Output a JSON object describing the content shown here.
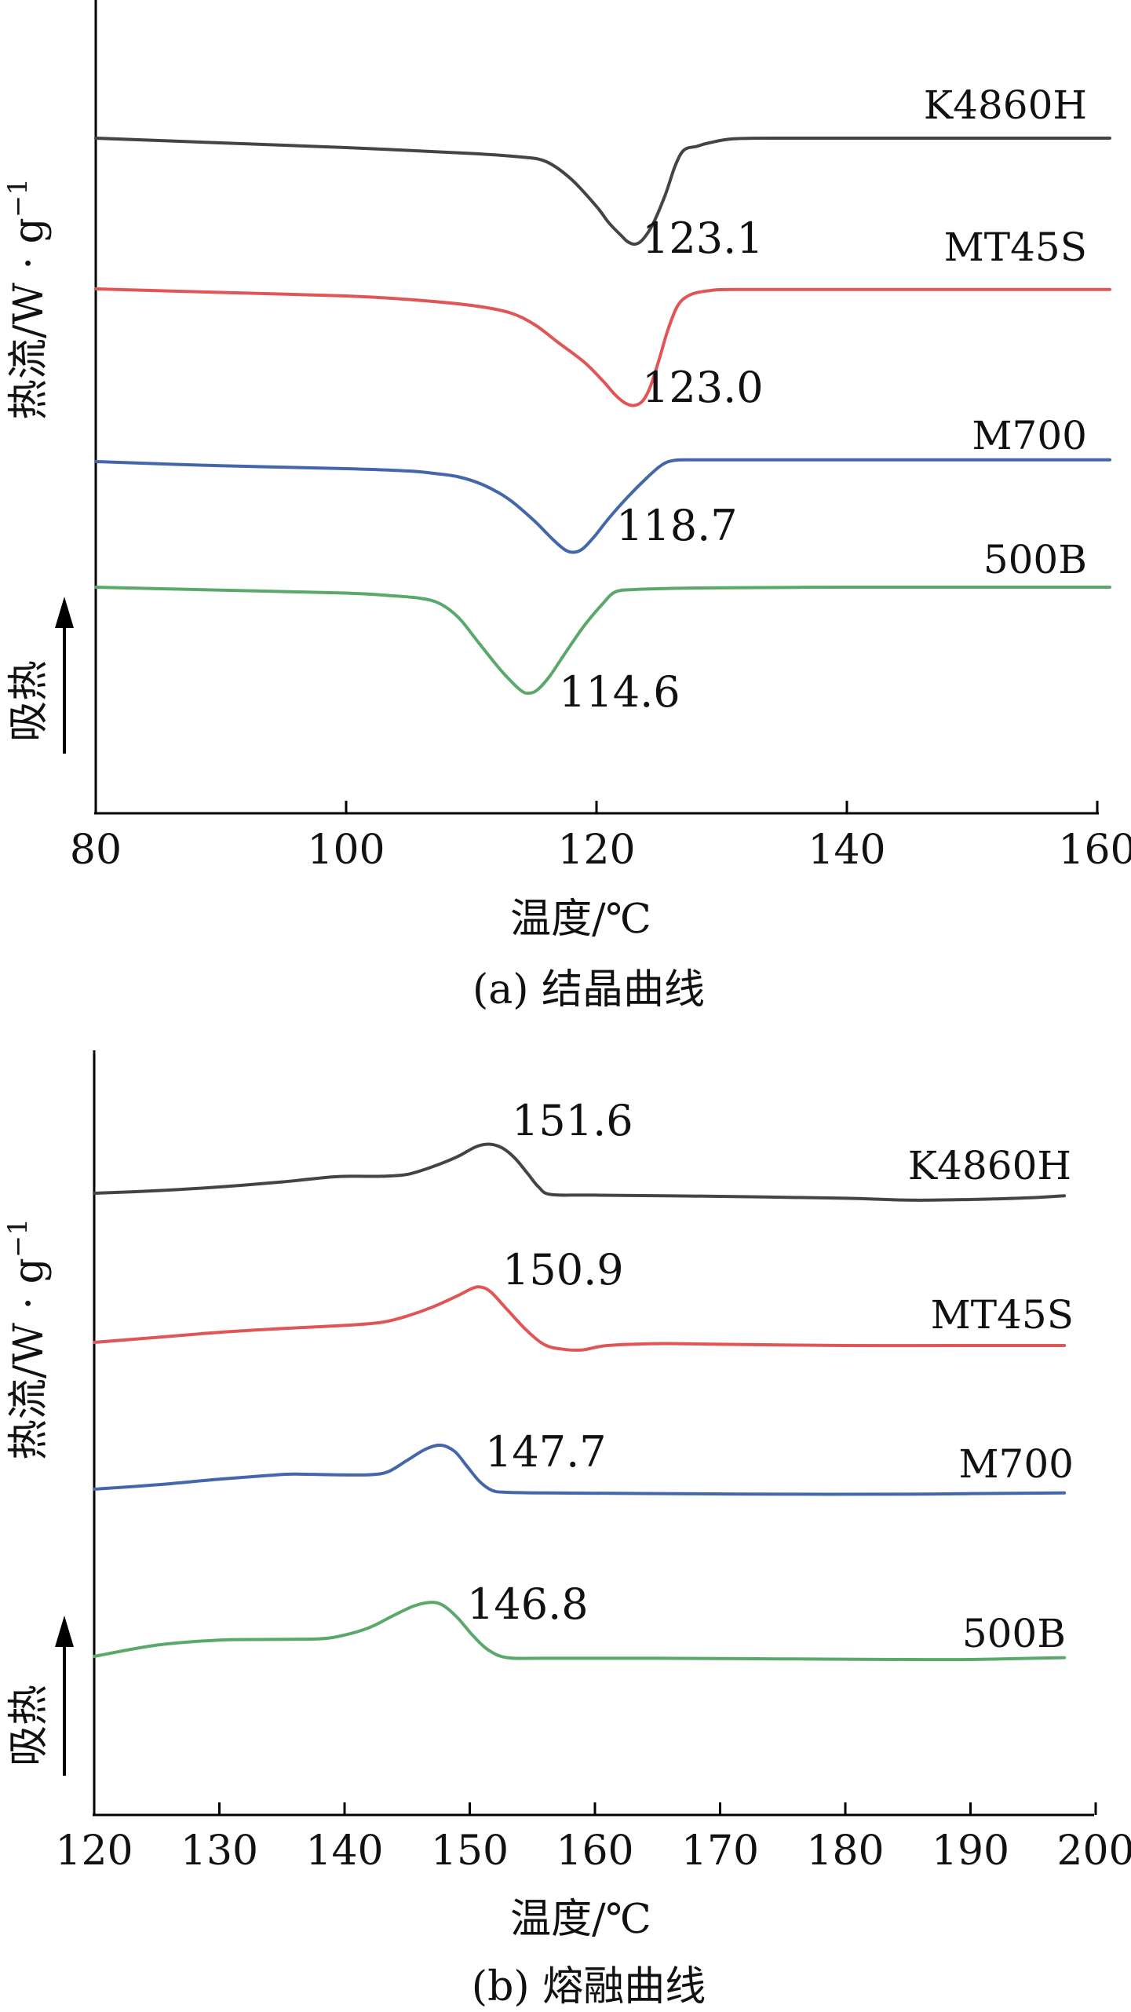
{
  "colors": {
    "K4860H": "#444444",
    "MT45S": "#e05555",
    "M700": "#4466aa",
    "500B": "#5aa86a"
  },
  "chart_data": [
    {
      "type": "line",
      "caption": "(a) 结晶曲线",
      "xlabel": "温度/℃",
      "ylabel": "热流/W·g⁻¹",
      "ylabel_parts": {
        "main": "热流/W · g",
        "sup": "−1"
      },
      "direction_label": "吸热",
      "xlim": [
        80,
        161
      ],
      "xticks": [
        80,
        100,
        120,
        140,
        160
      ],
      "yunits": "arbitrary (stacked, offset)",
      "series": [
        {
          "name": "K4860H",
          "color": "#444444",
          "peak_label": "123.1",
          "x": [
            80,
            90,
            100,
            110,
            114,
            116,
            118,
            120,
            121,
            122,
            122.5,
            123.1,
            123.7,
            124.5,
            125.5,
            126.3,
            127,
            128,
            129,
            131,
            135,
            140,
            150,
            161
          ],
          "y": [
            0,
            -0.4,
            -0.8,
            -1.3,
            -1.6,
            -2.0,
            -3.5,
            -5.8,
            -7.2,
            -8.3,
            -8.8,
            -9.0,
            -8.6,
            -7.3,
            -4.8,
            -2.3,
            -1.0,
            -0.7,
            -0.4,
            -0.05,
            0,
            0,
            0,
            0
          ]
        },
        {
          "name": "MT45S",
          "color": "#e05555",
          "peak_label": "123.0",
          "x": [
            80,
            90,
            100,
            105,
            110,
            113,
            115,
            117,
            119,
            120.5,
            121.5,
            122.3,
            123,
            123.7,
            124.3,
            125,
            125.7,
            126.5,
            127.5,
            129,
            131,
            140,
            150,
            161
          ],
          "y": [
            0,
            -0.3,
            -0.6,
            -0.9,
            -1.4,
            -2.0,
            -3.0,
            -4.6,
            -6.2,
            -7.8,
            -9.0,
            -9.7,
            -9.9,
            -9.5,
            -8.3,
            -6.0,
            -3.5,
            -1.4,
            -0.5,
            -0.15,
            -0.05,
            -0.05,
            -0.05,
            -0.05
          ]
        },
        {
          "name": "M700",
          "color": "#4466aa",
          "peak_label": "118.7",
          "x": [
            80,
            90,
            100,
            105,
            107,
            109,
            111,
            113,
            115,
            116.5,
            117.5,
            118.2,
            118.9,
            119.8,
            121,
            122.5,
            124,
            125.2,
            126.2,
            128,
            132,
            140,
            150,
            161
          ],
          "y": [
            0,
            -0.35,
            -0.6,
            -0.8,
            -1.0,
            -1.3,
            -2.0,
            -3.2,
            -5.0,
            -6.6,
            -7.5,
            -7.7,
            -7.4,
            -6.4,
            -4.8,
            -3.0,
            -1.4,
            -0.3,
            0.1,
            0.15,
            0.15,
            0.15,
            0.15,
            0.15
          ]
        },
        {
          "name": "500B",
          "color": "#5aa86a",
          "peak_label": "114.6",
          "x": [
            80,
            90,
            100,
            104,
            106,
            107.5,
            109,
            110.5,
            112,
            113,
            114,
            114.6,
            115.3,
            116.3,
            117.5,
            119,
            120.5,
            121.5,
            123,
            126,
            130,
            140,
            150,
            161
          ],
          "y": [
            0,
            -0.25,
            -0.5,
            -0.75,
            -0.95,
            -1.4,
            -2.6,
            -4.6,
            -6.6,
            -7.8,
            -8.8,
            -9.0,
            -8.7,
            -7.5,
            -5.6,
            -3.3,
            -1.4,
            -0.4,
            -0.2,
            -0.1,
            -0.05,
            0,
            0,
            0
          ]
        }
      ]
    },
    {
      "type": "line",
      "caption": "(b) 熔融曲线",
      "xlabel": "温度/℃",
      "ylabel": "热流/W·g⁻¹",
      "ylabel_parts": {
        "main": "热流/W · g",
        "sup": "−1"
      },
      "direction_label": "吸热",
      "xlim": [
        120,
        200
      ],
      "xticks": [
        120,
        130,
        140,
        150,
        160,
        170,
        180,
        190,
        200
      ],
      "yunits": "arbitrary (stacked, offset)",
      "series": [
        {
          "name": "K4860H",
          "color": "#444444",
          "peak_label": "151.6",
          "x": [
            120,
            125,
            130,
            135,
            139,
            141,
            143,
            145,
            147,
            149,
            150.5,
            151.6,
            152.6,
            153.6,
            154.6,
            155.5,
            156.5,
            160,
            170,
            180,
            185,
            190,
            195,
            197.5
          ],
          "y": [
            0,
            0.2,
            0.5,
            0.9,
            1.3,
            1.35,
            1.35,
            1.5,
            2.1,
            2.9,
            3.7,
            3.9,
            3.6,
            2.8,
            1.6,
            0.5,
            -0.1,
            -0.15,
            -0.25,
            -0.4,
            -0.55,
            -0.5,
            -0.35,
            -0.2
          ]
        },
        {
          "name": "MT45S",
          "color": "#e05555",
          "peak_label": "150.9",
          "x": [
            120,
            125,
            130,
            135,
            140,
            143,
            145,
            147,
            149,
            150.2,
            150.9,
            151.7,
            153,
            154.5,
            156,
            157.5,
            159,
            161,
            165,
            170,
            180,
            190,
            197.5
          ],
          "y": [
            0,
            0.4,
            0.8,
            1.1,
            1.35,
            1.6,
            2.1,
            2.8,
            3.7,
            4.3,
            4.4,
            4.0,
            2.6,
            1.0,
            -0.2,
            -0.55,
            -0.6,
            -0.25,
            -0.1,
            -0.15,
            -0.25,
            -0.25,
            -0.25
          ]
        },
        {
          "name": "M700",
          "color": "#4466aa",
          "peak_label": "147.7",
          "x": [
            120,
            125,
            130,
            134,
            136,
            139,
            142,
            143.5,
            145,
            146.5,
            147.7,
            148.8,
            149.8,
            150.8,
            151.8,
            153,
            156,
            165,
            175,
            185,
            190,
            197.5
          ],
          "y": [
            0,
            0.35,
            0.8,
            1.1,
            1.2,
            1.15,
            1.15,
            1.4,
            2.3,
            3.2,
            3.5,
            3.0,
            1.8,
            0.6,
            -0.1,
            -0.25,
            -0.3,
            -0.35,
            -0.4,
            -0.4,
            -0.35,
            -0.3
          ]
        },
        {
          "name": "500B",
          "color": "#5aa86a",
          "peak_label": "146.8",
          "x": [
            120,
            125,
            130,
            134,
            138,
            140,
            142,
            144,
            145.5,
            146.8,
            147.8,
            149,
            150.3,
            151.5,
            153,
            156,
            165,
            175,
            185,
            190,
            195,
            197.5
          ],
          "y": [
            0,
            0.9,
            1.3,
            1.35,
            1.4,
            1.7,
            2.3,
            3.3,
            4.0,
            4.3,
            4.1,
            3.1,
            1.6,
            0.5,
            -0.1,
            -0.15,
            -0.15,
            -0.2,
            -0.25,
            -0.25,
            -0.15,
            -0.1
          ]
        }
      ]
    }
  ]
}
